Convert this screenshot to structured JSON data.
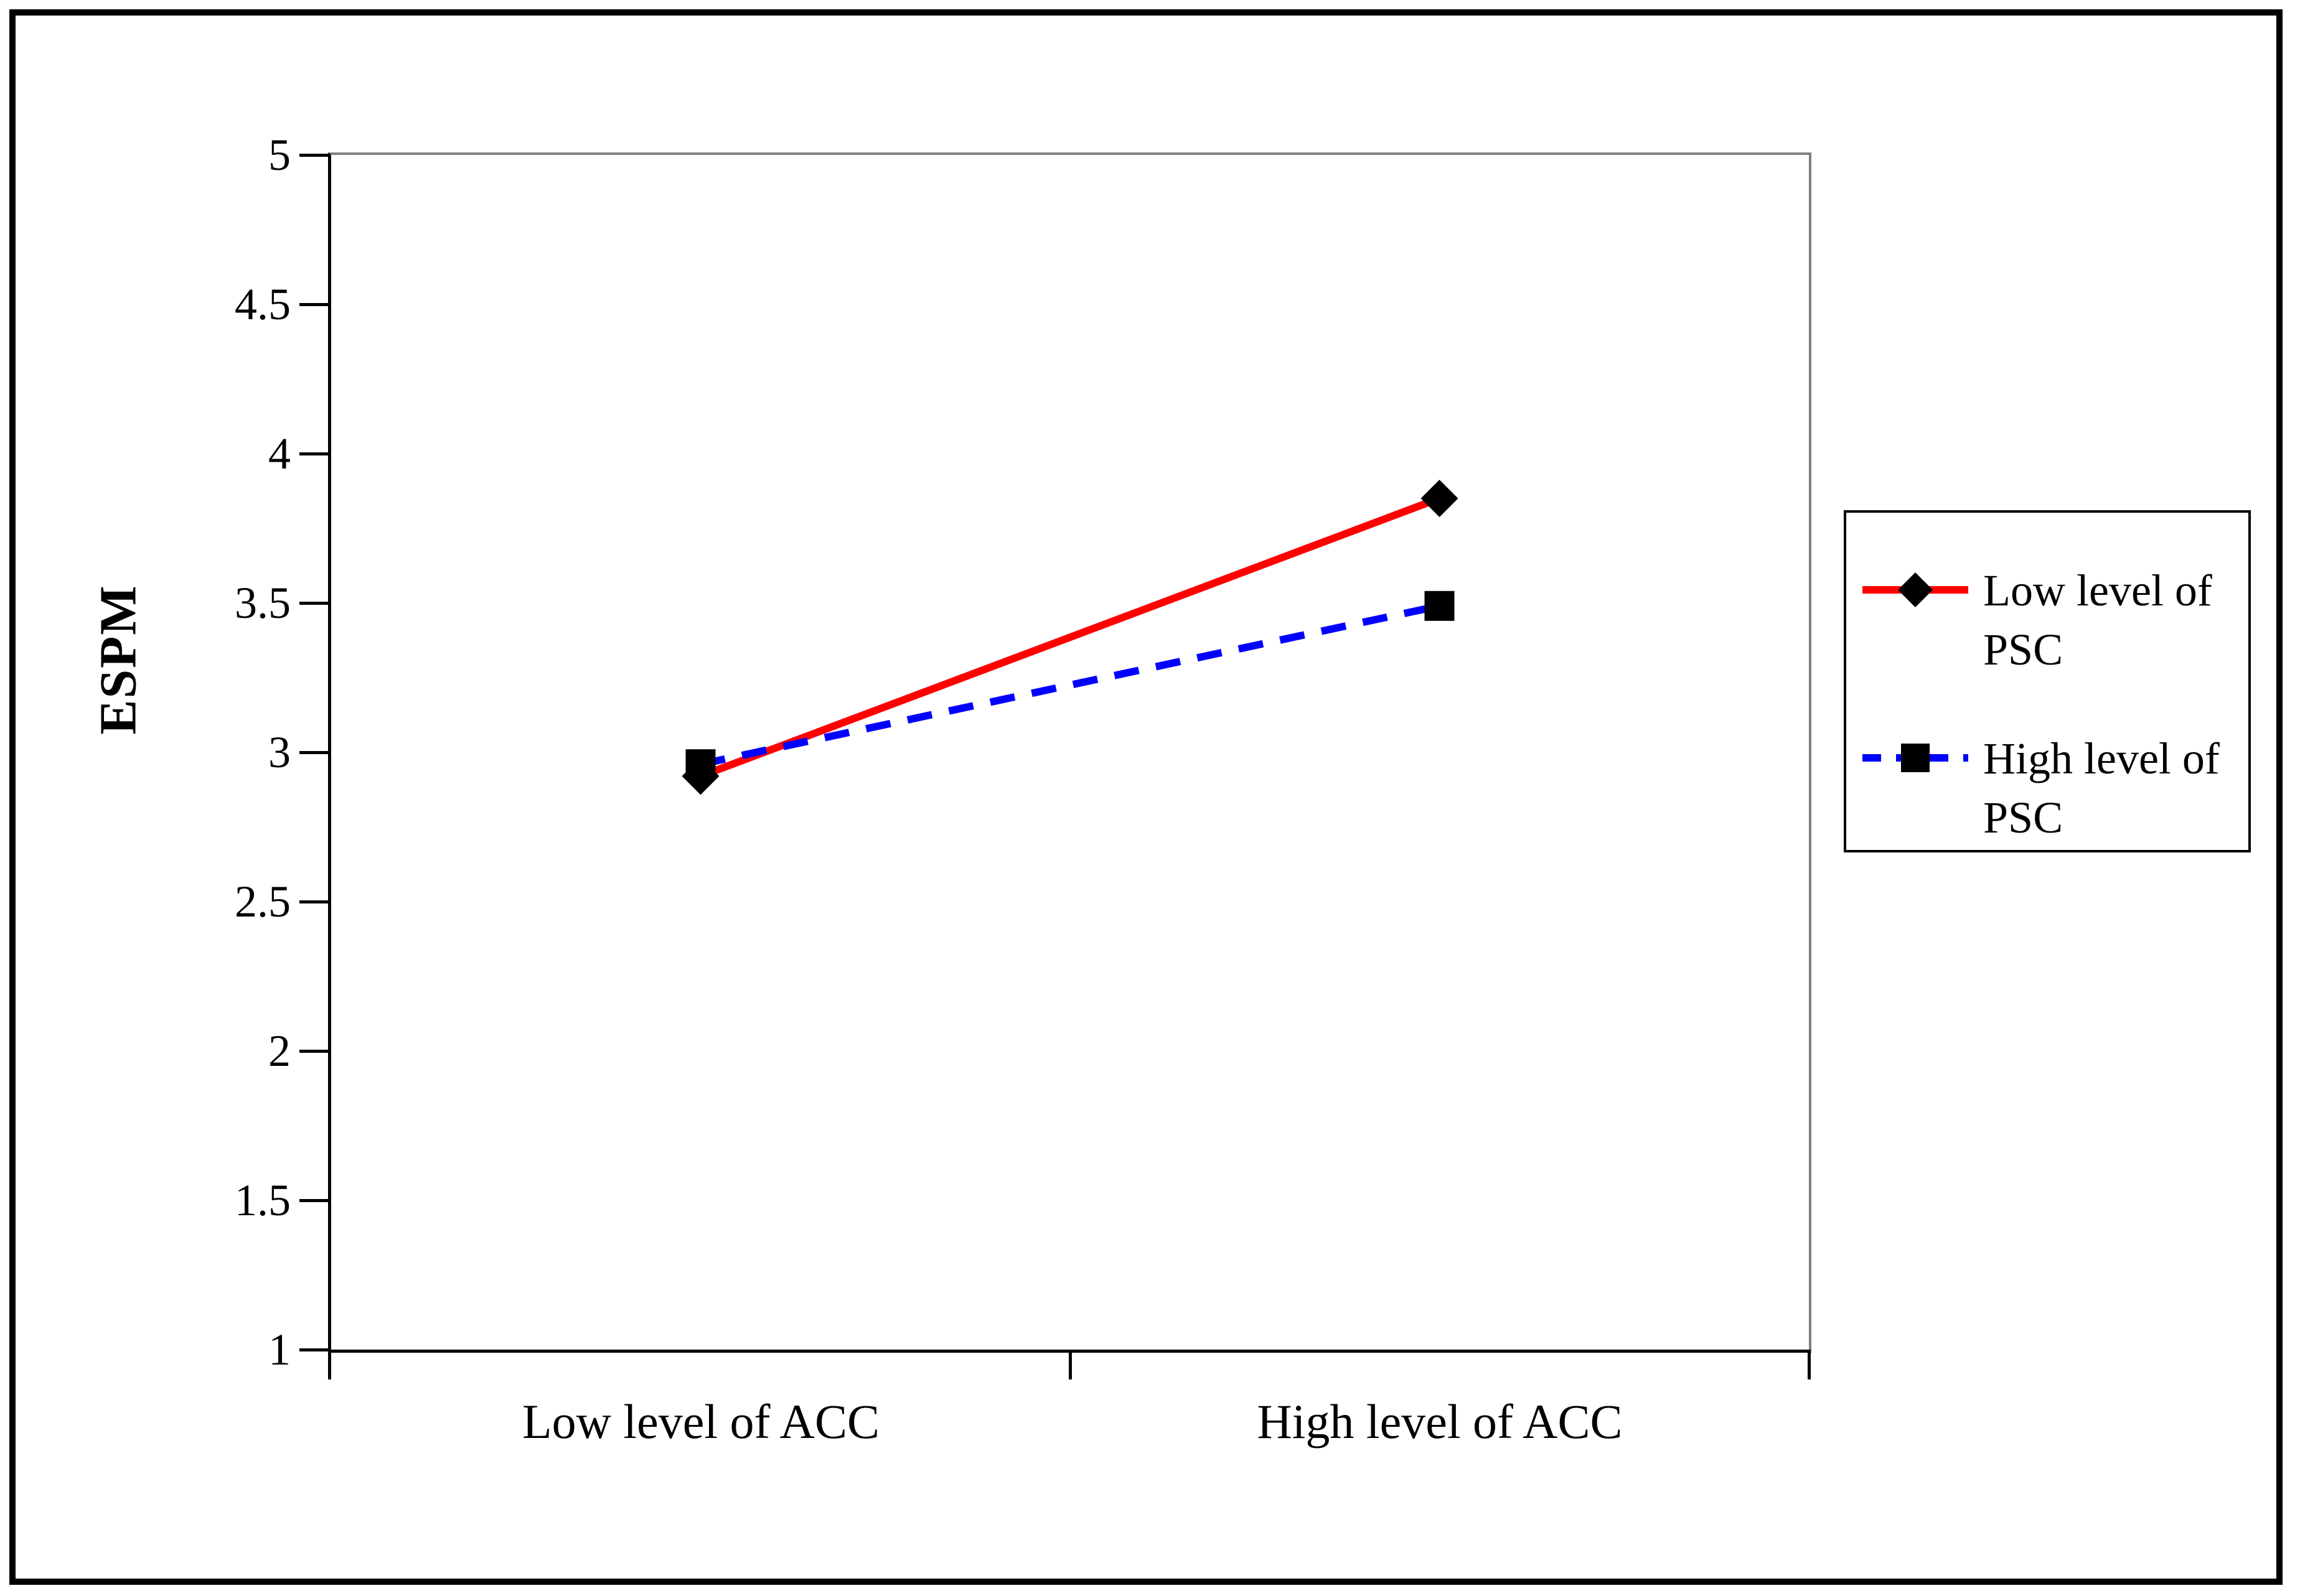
{
  "figure": {
    "border_color": "#000000",
    "background_color": "#ffffff",
    "axis_color": "#000000",
    "plot_box_color": "#808080"
  },
  "chart_data": {
    "type": "line",
    "title": "",
    "xlabel": "",
    "ylabel": "ESPM",
    "categories": [
      "Low level of ACC",
      "High level of ACC"
    ],
    "yticks": [
      5,
      4.5,
      4,
      3.5,
      3,
      2.5,
      2,
      1.5,
      1
    ],
    "ytick_labels": [
      "5",
      "4.5",
      "4",
      "3.5",
      "3",
      "2.5",
      "2",
      "1.5",
      "1"
    ],
    "ylim": [
      1,
      5
    ],
    "grid": false,
    "legend_position": "right",
    "series": [
      {
        "name": "Low level of PSC",
        "name_lines": [
          "Low level of",
          "PSC"
        ],
        "values": [
          2.92,
          3.85
        ],
        "color": "#ff0000",
        "line_style": "solid",
        "marker": "diamond",
        "marker_color": "#000000"
      },
      {
        "name": "High level of PSC",
        "name_lines": [
          "High level of",
          "PSC"
        ],
        "values": [
          2.96,
          3.49
        ],
        "color": "#0000ff",
        "line_style": "dashed",
        "marker": "square",
        "marker_color": "#000000"
      }
    ]
  }
}
